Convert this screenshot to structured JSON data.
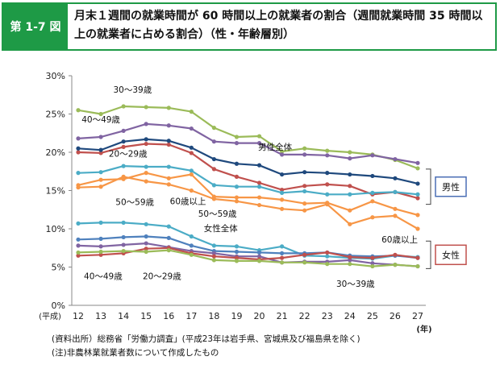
{
  "figure": {
    "number": "第 1-7 図",
    "title": "月末１週間の就業時間が 60 時間以上の就業者の割合（週間就業時間 35 時間以上の就業者に占める割合）（性・年齢層別）"
  },
  "notes": [
    "(資料出所）総務省「労働力調査」(平成23年は岩手県、宮城県及び福島県を除く)",
    "(注)非農林業就業者数について作成したもの"
  ],
  "chart_data": {
    "type": "line",
    "x": [
      12,
      13,
      14,
      15,
      16,
      17,
      18,
      19,
      20,
      21,
      22,
      23,
      24,
      25,
      26,
      27
    ],
    "x_prefix": "(平成)",
    "x_unit": "(年)",
    "ylim": [
      0,
      30
    ],
    "y_ticks": [
      "0%",
      "5%",
      "10%",
      "15%",
      "20%",
      "25%",
      "30%"
    ],
    "grid": false,
    "groups": [
      {
        "label": "男性",
        "color": "#4b6fb5",
        "y_range": [
          13.2,
          17.8
        ]
      },
      {
        "label": "女性",
        "color": "#c0504d",
        "y_range": [
          4.8,
          8.4
        ]
      }
    ],
    "series": [
      {
        "name": "30〜39歳",
        "group": "男性",
        "color": "#9bbb59",
        "values": [
          25.5,
          25.0,
          26.0,
          25.9,
          25.8,
          25.3,
          23.2,
          22.0,
          22.1,
          20.1,
          20.5,
          20.2,
          20.0,
          19.7,
          19.0,
          17.9
        ]
      },
      {
        "name": "40〜49歳",
        "group": "男性",
        "color": "#8064a2",
        "values": [
          21.8,
          22.0,
          22.8,
          23.7,
          23.5,
          23.1,
          21.4,
          21.2,
          21.2,
          19.7,
          19.7,
          19.6,
          19.2,
          19.6,
          19.1,
          18.6
        ]
      },
      {
        "name": "20〜29歳",
        "group": "男性",
        "color": "#c0504d",
        "values": [
          20.0,
          19.9,
          20.7,
          21.1,
          21.0,
          19.9,
          17.8,
          16.8,
          16.0,
          15.1,
          15.6,
          15.8,
          15.6,
          14.5,
          14.8,
          14.0
        ]
      },
      {
        "name": "男性全体",
        "group": "男性",
        "color": "#1f497d",
        "values": [
          20.5,
          20.3,
          21.4,
          21.7,
          21.5,
          20.6,
          19.1,
          18.5,
          18.3,
          17.1,
          17.4,
          17.3,
          17.1,
          16.9,
          16.6,
          15.9
        ]
      },
      {
        "name": "50〜59歳",
        "group": "男性",
        "color": "#4bacc6",
        "values": [
          17.3,
          17.4,
          18.2,
          18.1,
          18.1,
          17.6,
          15.7,
          15.5,
          15.5,
          14.7,
          14.9,
          14.5,
          14.5,
          14.7,
          14.8,
          14.5
        ]
      },
      {
        "name": "60歳以上",
        "group": "男性",
        "color": "#f79646",
        "values": [
          15.7,
          16.4,
          16.5,
          17.3,
          16.6,
          17.1,
          14.2,
          14.1,
          14.1,
          13.8,
          13.3,
          13.4,
          12.4,
          13.6,
          12.6,
          11.8
        ]
      },
      {
        "name": "",
        "group": "男性",
        "color": "#f79646",
        "values": [
          15.4,
          15.5,
          16.8,
          16.2,
          15.8,
          15.0,
          13.9,
          13.6,
          13.1,
          12.6,
          12.4,
          13.2,
          10.6,
          11.5,
          11.7,
          10.0
        ]
      },
      {
        "name": "50〜59歳",
        "group": "女性",
        "color": "#4bacc6",
        "values": [
          10.7,
          10.8,
          10.8,
          10.6,
          10.3,
          9.0,
          7.8,
          7.7,
          7.2,
          7.7,
          6.5,
          6.4,
          6.2,
          6.1,
          6.5,
          6.3
        ]
      },
      {
        "name": "女性全体",
        "group": "女性",
        "color": "#4f81bd",
        "values": [
          8.6,
          8.7,
          8.9,
          9.0,
          8.8,
          7.8,
          7.1,
          7.0,
          6.9,
          6.8,
          6.8,
          6.9,
          6.5,
          6.4,
          6.5,
          6.2
        ]
      },
      {
        "name": "40〜49歳",
        "group": "女性",
        "color": "#8064a2",
        "values": [
          7.8,
          7.7,
          7.9,
          8.1,
          7.6,
          7.1,
          6.8,
          6.4,
          6.4,
          5.6,
          5.7,
          5.7,
          5.9,
          5.5,
          5.3,
          5.1
        ]
      },
      {
        "name": "20〜29歳",
        "group": "女性",
        "color": "#c0504d",
        "values": [
          6.5,
          6.6,
          6.8,
          7.4,
          7.5,
          6.8,
          6.4,
          6.2,
          6.0,
          6.2,
          6.6,
          6.9,
          6.3,
          6.2,
          6.6,
          6.2
        ]
      },
      {
        "name": "30〜39歳",
        "group": "女性",
        "color": "#9bbb59",
        "values": [
          6.9,
          7.0,
          7.1,
          7.0,
          7.2,
          6.6,
          5.9,
          5.8,
          5.8,
          5.6,
          5.6,
          5.4,
          5.4,
          5.1,
          5.3,
          5.1
        ]
      }
    ],
    "annotations": [
      {
        "text": "30〜39歳",
        "x": 13.55,
        "y": 27.8
      },
      {
        "text": "40〜49歳",
        "x": 12.15,
        "y": 23.9
      },
      {
        "text": "20〜29歳",
        "x": 13.35,
        "y": 19.4
      },
      {
        "text": "男性全体",
        "x": 19.95,
        "y": 20.3
      },
      {
        "text": "50〜59歳",
        "x": 13.65,
        "y": 13.1
      },
      {
        "text": "60歳以上",
        "x": 16.05,
        "y": 13.2
      },
      {
        "text": "50〜59歳",
        "x": 17.3,
        "y": 11.6
      },
      {
        "text": "女性全体",
        "x": 17.55,
        "y": 9.7
      },
      {
        "text": "60歳以上",
        "x": 25.4,
        "y": 8.2
      },
      {
        "text": "40〜49歳",
        "x": 12.25,
        "y": 3.4
      },
      {
        "text": "20〜29歳",
        "x": 14.85,
        "y": 3.4
      },
      {
        "text": "30〜39歳",
        "x": 23.4,
        "y": 2.4
      }
    ]
  }
}
